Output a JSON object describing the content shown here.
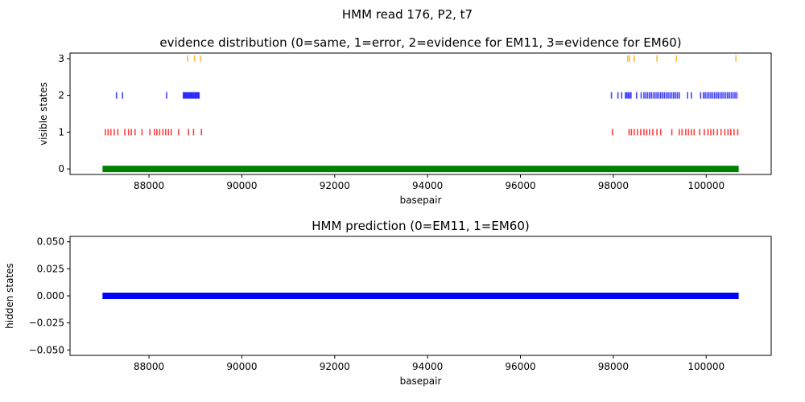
{
  "figure": {
    "suptitle": "HMM read 176, P2, t7"
  },
  "chart_data": [
    {
      "type": "scatter",
      "title": "evidence distribution (0=same, 1=error, 2=evidence for EM11, 3=evidence for EM60)",
      "xlabel": "basepair",
      "ylabel": "visible states",
      "xlim": [
        86300,
        101400
      ],
      "ylim": [
        -0.15,
        3.15
      ],
      "xticks": [
        88000,
        90000,
        92000,
        94000,
        96000,
        98000,
        100000
      ],
      "yticks": [
        0,
        1,
        2,
        3
      ],
      "grid": false,
      "marker": "vertical-tick",
      "series": [
        {
          "state": 0,
          "color": "#008000",
          "continuous": [
            [
              87000,
              100700
            ]
          ]
        },
        {
          "state": 1,
          "color": "#ff0000",
          "x": [
            87060,
            87120,
            87180,
            87250,
            87330,
            87480,
            87560,
            87620,
            87700,
            87850,
            88020,
            88120,
            88170,
            88230,
            88300,
            88360,
            88420,
            88480,
            88640,
            88850,
            88960,
            89130,
            97980,
            98340,
            98390,
            98450,
            98520,
            98590,
            98660,
            98720,
            98780,
            98850,
            98940,
            99020,
            99260,
            99420,
            99480,
            99560,
            99620,
            99680,
            99740,
            99860,
            99960,
            100040,
            100100,
            100160,
            100240,
            100320,
            100400,
            100470,
            100530,
            100600,
            100680
          ]
        },
        {
          "state": 2,
          "color": "#0000ff",
          "x": [
            87300,
            87430,
            88380,
            88740,
            88760,
            88780,
            88800,
            88820,
            88840,
            88860,
            88880,
            88900,
            88920,
            88940,
            88960,
            88980,
            89000,
            89020,
            89040,
            89060,
            89080,
            97960,
            98100,
            98180,
            98260,
            98290,
            98320,
            98350,
            98380,
            98500,
            98600,
            98660,
            98700,
            98740,
            98780,
            98820,
            98860,
            98900,
            98940,
            98980,
            99020,
            99060,
            99100,
            99140,
            99180,
            99220,
            99260,
            99300,
            99340,
            99380,
            99420,
            99600,
            99680,
            99880,
            99940,
            99980,
            100020,
            100060,
            100100,
            100140,
            100180,
            100220,
            100260,
            100300,
            100340,
            100380,
            100420,
            100460,
            100500,
            100540,
            100580,
            100620,
            100660
          ]
        },
        {
          "state": 3,
          "color": "#ffa500",
          "x": [
            88830,
            88980,
            89110,
            98310,
            98350,
            98450,
            98940,
            99360,
            100640
          ]
        }
      ]
    },
    {
      "type": "line",
      "title": "HMM prediction (0=EM11, 1=EM60)",
      "xlabel": "basepair",
      "ylabel": "hidden states",
      "xlim": [
        86300,
        101400
      ],
      "ylim": [
        -0.055,
        0.055
      ],
      "xticks": [
        88000,
        90000,
        92000,
        94000,
        96000,
        98000,
        100000
      ],
      "yticks": [
        -0.05,
        -0.025,
        0.0,
        0.025,
        0.05
      ],
      "ytick_labels": [
        "−0.050",
        "−0.025",
        "0.000",
        "0.025",
        "0.050"
      ],
      "grid": false,
      "series": [
        {
          "color": "#0000ff",
          "x": [
            87000,
            100700
          ],
          "y": [
            0,
            0
          ]
        }
      ]
    }
  ]
}
